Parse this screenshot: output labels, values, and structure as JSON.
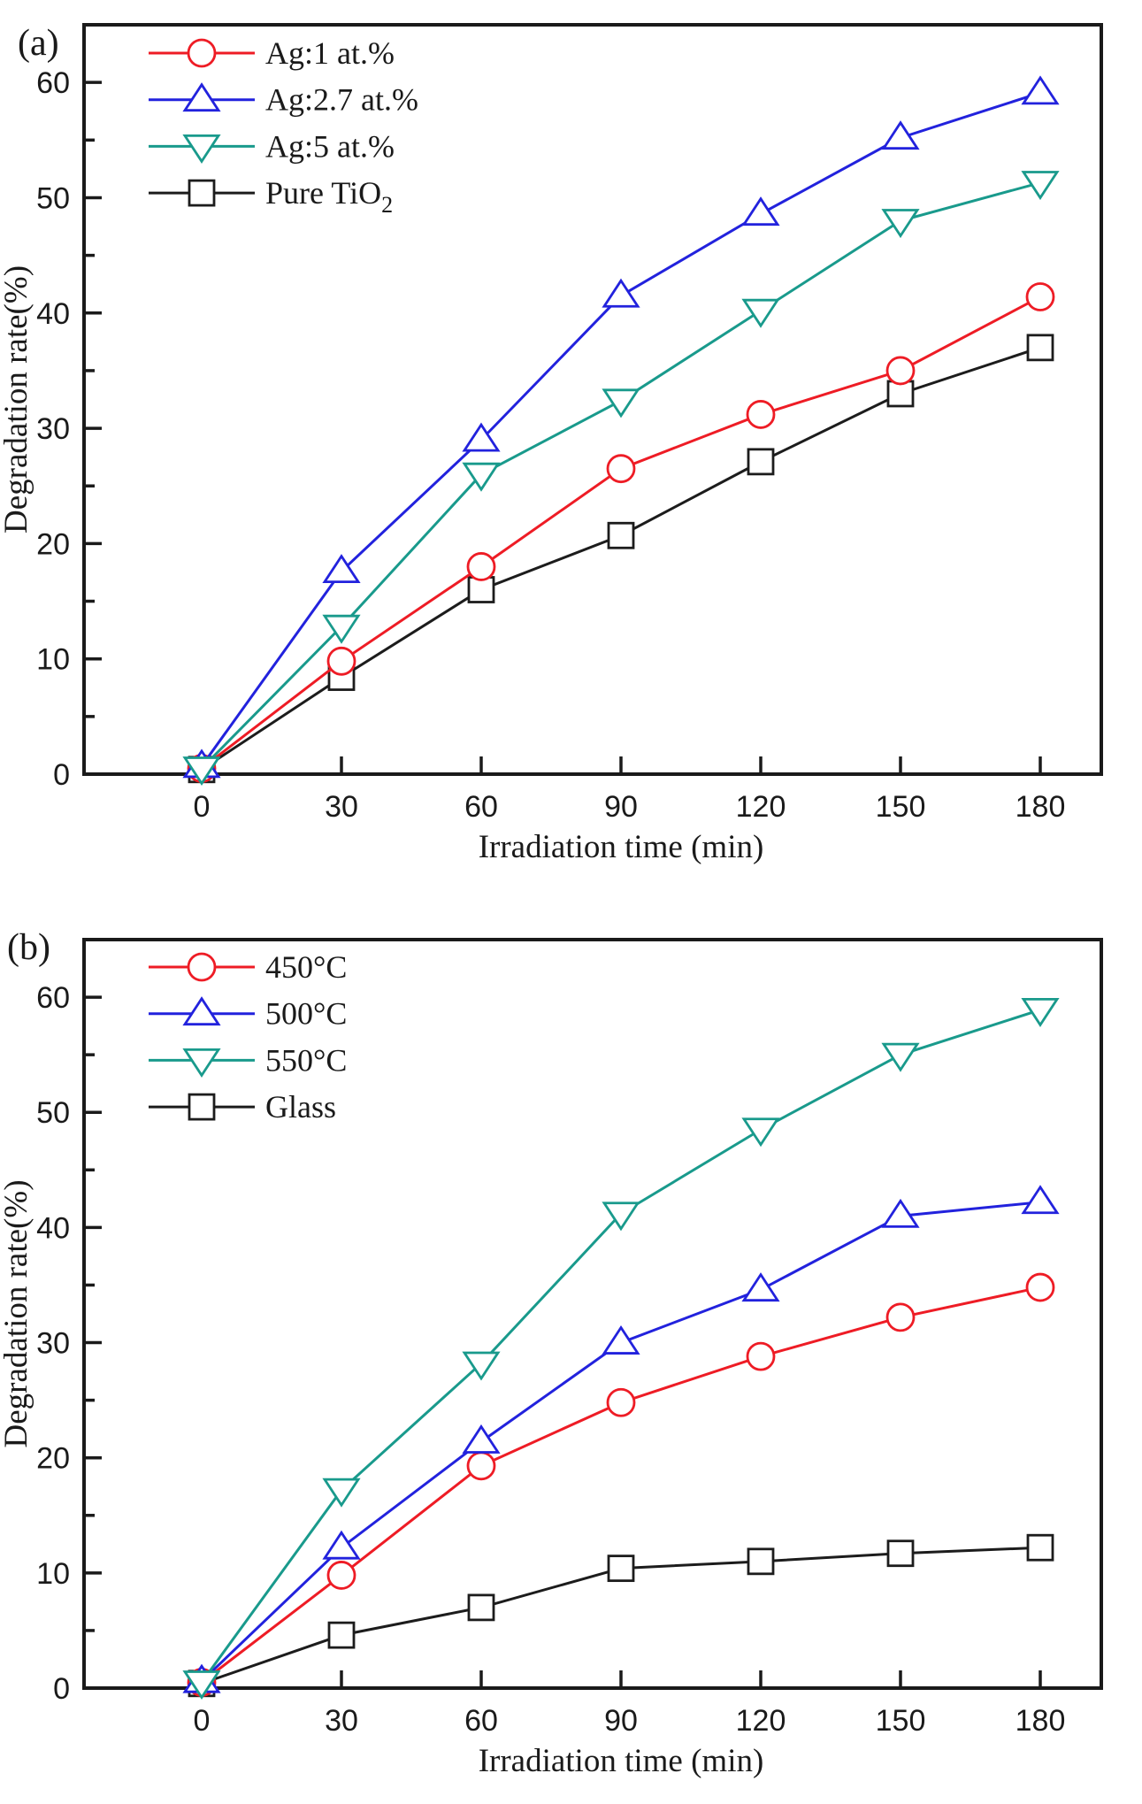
{
  "figure": {
    "description": "Two stacked line charts of photocatalytic degradation rate versus irradiation time",
    "panels": [
      "(a)",
      "(b)"
    ]
  },
  "chart_data": [
    {
      "type": "line",
      "panel_label": "(a)",
      "xlabel": "Irradiation time (min)",
      "ylabel": "Degradation rate(%)",
      "x": [
        0,
        30,
        60,
        90,
        120,
        150,
        180
      ],
      "xticks": [
        0,
        30,
        60,
        90,
        120,
        150,
        180
      ],
      "yticks_major": [
        0,
        10,
        20,
        30,
        40,
        50,
        60
      ],
      "yticks_minor": [
        5,
        15,
        25,
        35,
        45,
        55
      ],
      "xlim": [
        -25,
        193
      ],
      "ylim": [
        0,
        65
      ],
      "grid": false,
      "legend_position": "top-left",
      "series": [
        {
          "label": "Ag:1 at.%",
          "marker": "circle",
          "color": "#ee1c25",
          "values": [
            0.5,
            9.8,
            18.0,
            26.5,
            31.2,
            35.0,
            41.4
          ]
        },
        {
          "label": "Ag:2.7 at.%",
          "marker": "triangle-up",
          "color": "#2222dd",
          "values": [
            0.7,
            17.6,
            29.0,
            41.5,
            48.6,
            55.2,
            59.1
          ]
        },
        {
          "label": "Ag:5 at.%",
          "marker": "triangle-down",
          "color": "#199a8c",
          "values": [
            0.5,
            12.8,
            26.0,
            32.4,
            40.2,
            48.0,
            51.3
          ]
        },
        {
          "label": "Pure TiO",
          "label_sub": "2",
          "marker": "square",
          "color": "#1c1c1c",
          "values": [
            0.4,
            8.4,
            16.0,
            20.7,
            27.1,
            33.0,
            37.0
          ]
        }
      ]
    },
    {
      "type": "line",
      "panel_label": "(b)",
      "xlabel": "Irradiation time (min)",
      "ylabel": "Degradation rate(%)",
      "x": [
        0,
        30,
        60,
        90,
        120,
        150,
        180
      ],
      "xticks": [
        0,
        30,
        60,
        90,
        120,
        150,
        180
      ],
      "yticks_major": [
        0,
        10,
        20,
        30,
        40,
        50,
        60
      ],
      "yticks_minor": [
        5,
        15,
        25,
        35,
        45,
        55
      ],
      "xlim": [
        -25,
        193
      ],
      "ylim": [
        0,
        65
      ],
      "grid": false,
      "legend_position": "top-left",
      "series": [
        {
          "label": "450°C",
          "marker": "circle",
          "color": "#ee1c25",
          "values": [
            0.5,
            9.8,
            19.3,
            24.8,
            28.8,
            32.2,
            34.8
          ]
        },
        {
          "label": "500°C",
          "marker": "triangle-up",
          "color": "#2222dd",
          "values": [
            0.6,
            12.2,
            21.4,
            30.0,
            34.6,
            41.0,
            42.2
          ]
        },
        {
          "label": "550°C",
          "marker": "triangle-down",
          "color": "#199a8c",
          "values": [
            0.5,
            17.2,
            28.2,
            41.2,
            48.5,
            55.0,
            58.9
          ]
        },
        {
          "label": "Glass",
          "marker": "square",
          "color": "#1c1c1c",
          "values": [
            0.4,
            4.6,
            7.0,
            10.4,
            11.0,
            11.7,
            12.2
          ]
        }
      ]
    }
  ],
  "style": {
    "axis_color": "#1a1a1a",
    "marker_fill": "#ffffff"
  }
}
